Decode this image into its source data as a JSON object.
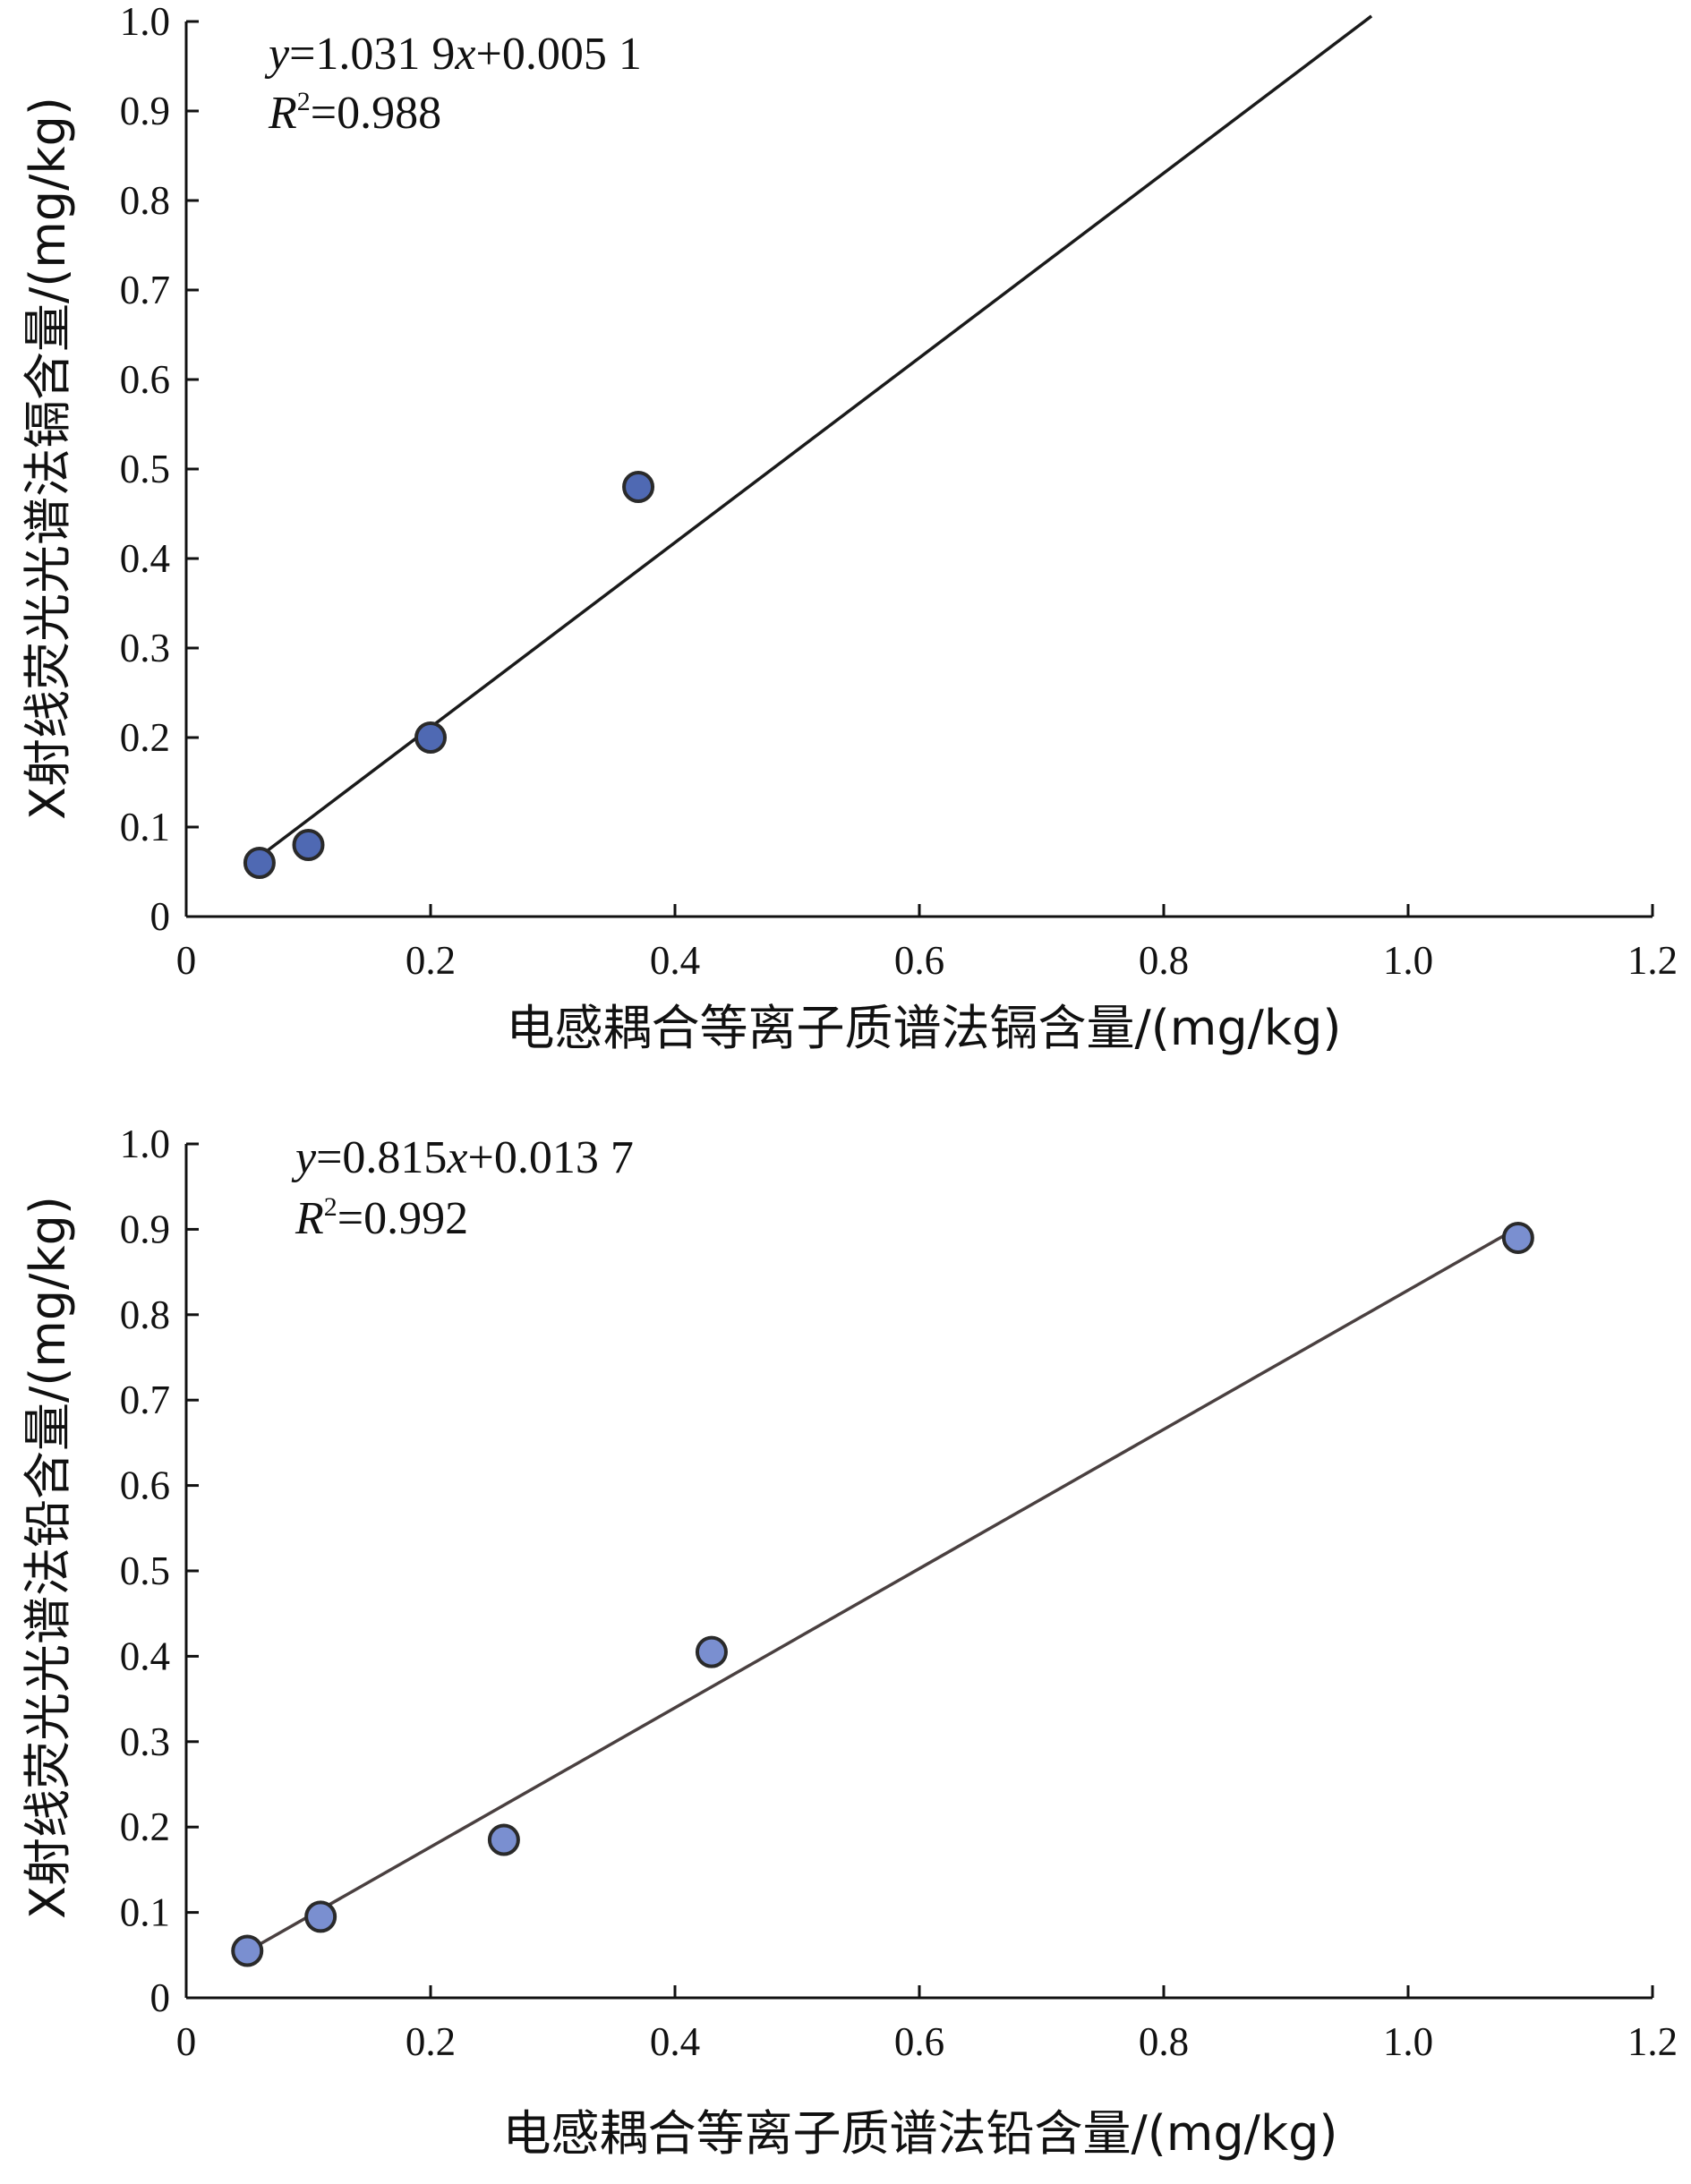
{
  "chart_data": [
    {
      "type": "scatter",
      "xlabel": "电感耦合等离子质谱法镉含量/(mg/kg)",
      "ylabel": "X射线荧光光谱法镉含量/(mg/kg)",
      "xlim": [
        0,
        1.2
      ],
      "ylim": [
        0,
        1.0
      ],
      "x_ticks": [
        {
          "value": 0,
          "label": "0"
        },
        {
          "value": 0.2,
          "label": "0.2"
        },
        {
          "value": 0.4,
          "label": "0.4"
        },
        {
          "value": 0.6,
          "label": "0.6"
        },
        {
          "value": 0.8,
          "label": "0.8"
        },
        {
          "value": 1.0,
          "label": "1.0"
        },
        {
          "value": 1.2,
          "label": "1.2"
        }
      ],
      "y_ticks": [
        {
          "value": 0,
          "label": "0"
        },
        {
          "value": 0.1,
          "label": "0.1"
        },
        {
          "value": 0.2,
          "label": "0.2"
        },
        {
          "value": 0.3,
          "label": "0.3"
        },
        {
          "value": 0.4,
          "label": "0.4"
        },
        {
          "value": 0.5,
          "label": "0.5"
        },
        {
          "value": 0.6,
          "label": "0.6"
        },
        {
          "value": 0.7,
          "label": "0.7"
        },
        {
          "value": 0.8,
          "label": "0.8"
        },
        {
          "value": 0.9,
          "label": "0.9"
        },
        {
          "value": 1.0,
          "label": "1.0"
        }
      ],
      "points": [
        {
          "x": 0.06,
          "y": 0.06
        },
        {
          "x": 0.1,
          "y": 0.08
        },
        {
          "x": 0.2,
          "y": 0.2
        },
        {
          "x": 0.37,
          "y": 0.48
        }
      ],
      "fit": {
        "slope": 1.0319,
        "intercept": 0.0051,
        "x_range": [
          0.06,
          0.97
        ]
      },
      "equation": {
        "y": "y",
        "eq_text": "=1.031 9",
        "x": "x",
        "rest": "+0.005 1"
      },
      "r2": {
        "r": "R",
        "sup": "2",
        "value": "=0.988"
      },
      "grid": false,
      "marker_color": "#4f69b3",
      "line_color": "#1a1a1a"
    },
    {
      "type": "scatter",
      "xlabel": "电感耦合等离子质谱法铅含量/(mg/kg)",
      "ylabel": "X射线荧光光谱法铅含量/(mg/kg)",
      "xlim": [
        0,
        1.2
      ],
      "ylim": [
        0,
        1.0
      ],
      "x_ticks": [
        {
          "value": 0,
          "label": "0"
        },
        {
          "value": 0.2,
          "label": "0.2"
        },
        {
          "value": 0.4,
          "label": "0.4"
        },
        {
          "value": 0.6,
          "label": "0.6"
        },
        {
          "value": 0.8,
          "label": "0.8"
        },
        {
          "value": 1.0,
          "label": "1.0"
        },
        {
          "value": 1.2,
          "label": "1.2"
        }
      ],
      "y_ticks": [
        {
          "value": 0,
          "label": "0"
        },
        {
          "value": 0.1,
          "label": "0.1"
        },
        {
          "value": 0.2,
          "label": "0.2"
        },
        {
          "value": 0.3,
          "label": "0.3"
        },
        {
          "value": 0.4,
          "label": "0.4"
        },
        {
          "value": 0.5,
          "label": "0.5"
        },
        {
          "value": 0.6,
          "label": "0.6"
        },
        {
          "value": 0.7,
          "label": "0.7"
        },
        {
          "value": 0.8,
          "label": "0.8"
        },
        {
          "value": 0.9,
          "label": "0.9"
        },
        {
          "value": 1.0,
          "label": "1.0"
        }
      ],
      "points": [
        {
          "x": 0.05,
          "y": 0.055
        },
        {
          "x": 0.11,
          "y": 0.095
        },
        {
          "x": 0.26,
          "y": 0.185
        },
        {
          "x": 0.43,
          "y": 0.405
        },
        {
          "x": 1.09,
          "y": 0.89
        }
      ],
      "fit": {
        "slope": 0.815,
        "intercept": 0.0137,
        "x_range": [
          0.06,
          1.09
        ]
      },
      "equation": {
        "y": "y",
        "eq_text": "=0.815",
        "x": "x",
        "rest": "+0.013 7"
      },
      "r2": {
        "r": "R",
        "sup": "2",
        "value": "=0.992"
      },
      "grid": false,
      "marker_color": "#7a8fd0",
      "line_color": "#4a4040"
    }
  ]
}
